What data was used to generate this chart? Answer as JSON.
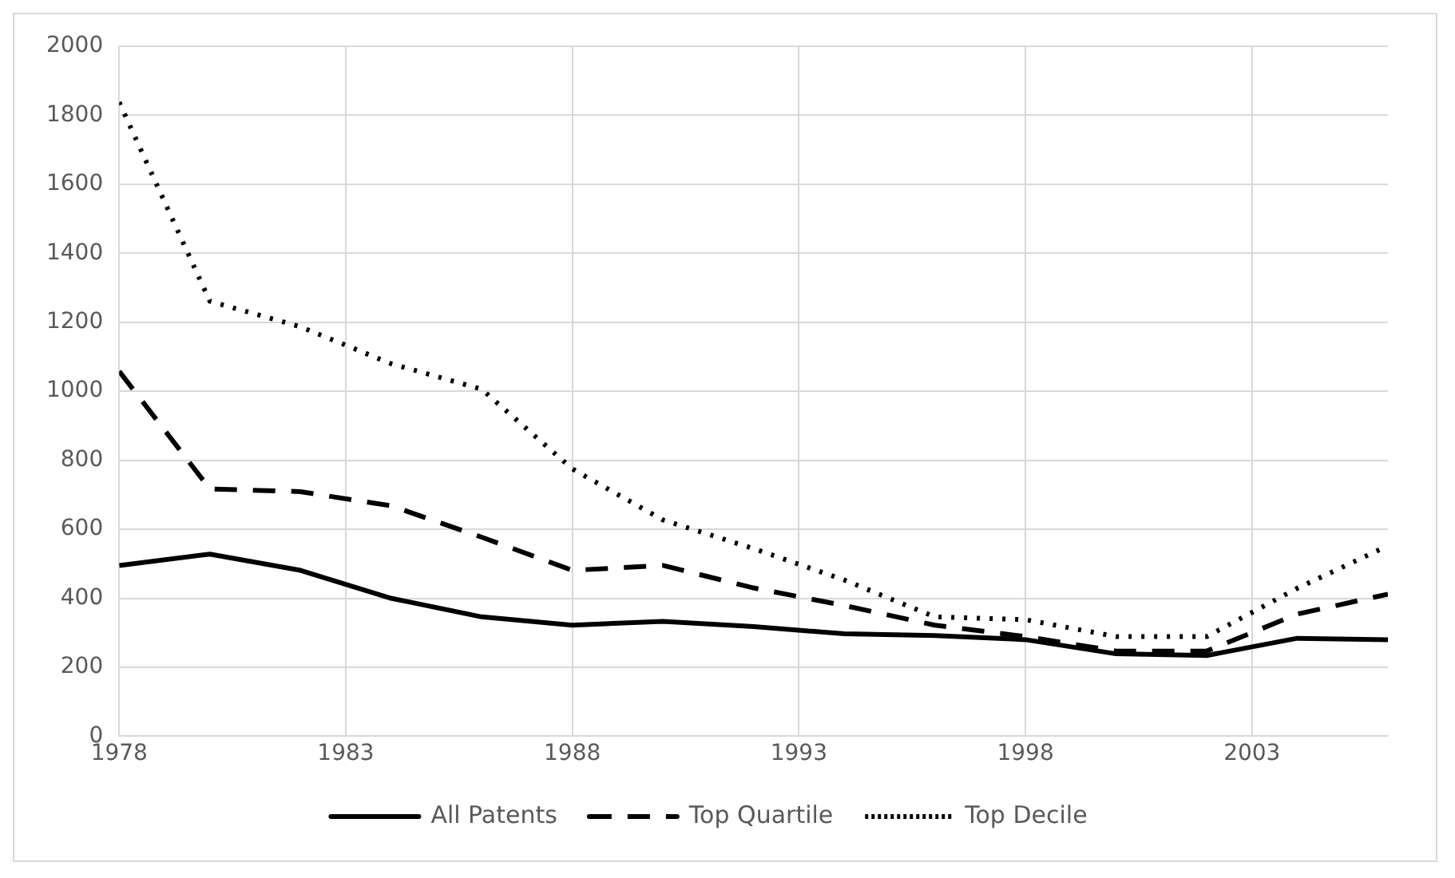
{
  "chart_data": {
    "type": "line",
    "x": [
      1978,
      1980,
      1982,
      1984,
      1986,
      1988,
      1990,
      1992,
      1994,
      1996,
      1998,
      2000,
      2002,
      2004,
      2006
    ],
    "series": [
      {
        "name": "All Patents",
        "color": "#000000",
        "line_style": "solid",
        "values": [
          495,
          528,
          481,
          400,
          346,
          322,
          333,
          318,
          297,
          292,
          280,
          239,
          234,
          284,
          280
        ]
      },
      {
        "name": "Top Quartile",
        "color": "#000000",
        "line_style": "dashed",
        "values": [
          1058,
          717,
          709,
          668,
          577,
          481,
          495,
          430,
          379,
          322,
          289,
          247,
          247,
          354,
          412
        ]
      },
      {
        "name": "Top Decile",
        "color": "#000000",
        "line_style": "dotted",
        "values": [
          1838,
          1261,
          1187,
          1080,
          1006,
          775,
          627,
          544,
          453,
          346,
          338,
          289,
          289,
          429,
          552
        ]
      }
    ],
    "xlim": [
      1978,
      2006
    ],
    "xticks": [
      1978,
      1983,
      1988,
      1993,
      1998,
      2003
    ],
    "ylim": [
      0,
      2000
    ],
    "yticks": [
      0,
      200,
      400,
      600,
      800,
      1000,
      1200,
      1400,
      1600,
      1800,
      2000
    ],
    "grid": true,
    "legend": "bottom",
    "marker": "none"
  }
}
